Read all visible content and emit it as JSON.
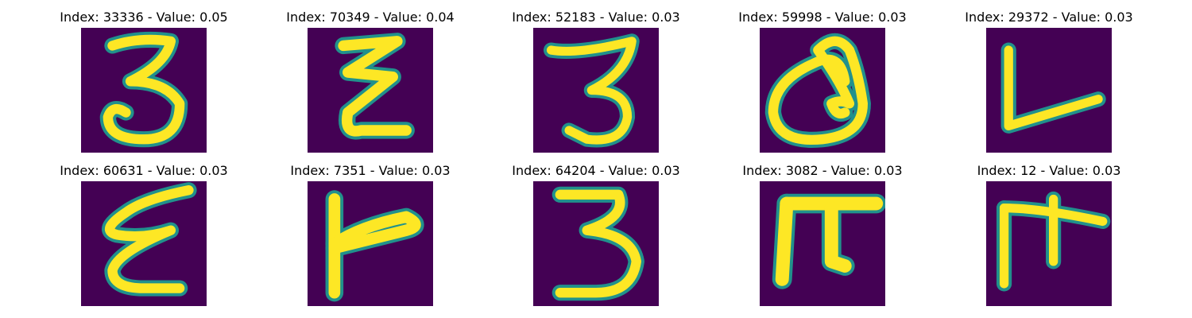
{
  "grid": {
    "items": [
      {
        "title": "Index: 33336 - Value: 0.05"
      },
      {
        "title": "Index: 70349 - Value: 0.04"
      },
      {
        "title": "Index: 52183 - Value: 0.03"
      },
      {
        "title": "Index: 59998 - Value: 0.03"
      },
      {
        "title": "Index: 29372 - Value: 0.03"
      },
      {
        "title": "Index: 60631 - Value: 0.03"
      },
      {
        "title": "Index: 7351 - Value: 0.03"
      },
      {
        "title": "Index: 64204 - Value: 0.03"
      },
      {
        "title": "Index: 3082 - Value: 0.03"
      },
      {
        "title": "Index: 12 - Value: 0.03"
      }
    ]
  },
  "colors": {
    "background": "#440154",
    "stroke_edge": "#21918c",
    "stroke_core": "#fde725"
  }
}
